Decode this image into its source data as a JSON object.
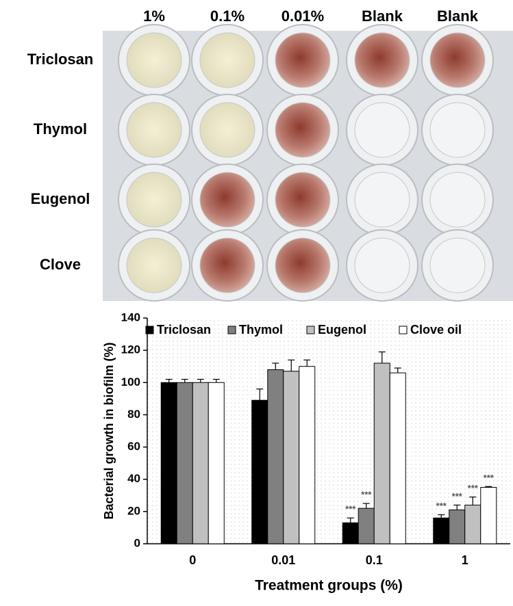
{
  "plate": {
    "column_labels": [
      "1%",
      "0.1%",
      "0.01%",
      "Blank",
      "Blank"
    ],
    "row_labels": [
      "Triclosan",
      "Thymol",
      "Eugenol",
      "Clove"
    ]
  },
  "chart_data": {
    "type": "bar",
    "y_label": "Bacterial growth in biofilm (%)",
    "x_label": "Treatment groups (%)",
    "categories": [
      "0",
      "0.01",
      "0.1",
      "1"
    ],
    "series": [
      {
        "name": "Triclosan",
        "color": "#000000",
        "values": [
          100,
          89,
          13,
          16
        ],
        "errors": [
          2,
          7,
          3,
          2
        ],
        "significance": [
          null,
          null,
          "***",
          "***"
        ]
      },
      {
        "name": "Thymol",
        "color": "#808080",
        "values": [
          100,
          108,
          22,
          21
        ],
        "errors": [
          2,
          4,
          3,
          3
        ],
        "significance": [
          null,
          null,
          "***",
          "***"
        ]
      },
      {
        "name": "Eugenol",
        "color": "#c0c0c0",
        "values": [
          100,
          107,
          112,
          24
        ],
        "errors": [
          2,
          7,
          7,
          5
        ],
        "significance": [
          null,
          null,
          null,
          "***"
        ]
      },
      {
        "name": "Clove oil",
        "color": "#ffffff",
        "values": [
          100,
          110,
          106,
          35
        ],
        "errors": [
          2,
          4,
          3,
          0.5
        ],
        "significance": [
          null,
          null,
          null,
          "***"
        ]
      }
    ],
    "ylim": [
      0,
      140
    ],
    "yticks": [
      0,
      20,
      40,
      60,
      80,
      100,
      120,
      140
    ],
    "legend": "top"
  }
}
